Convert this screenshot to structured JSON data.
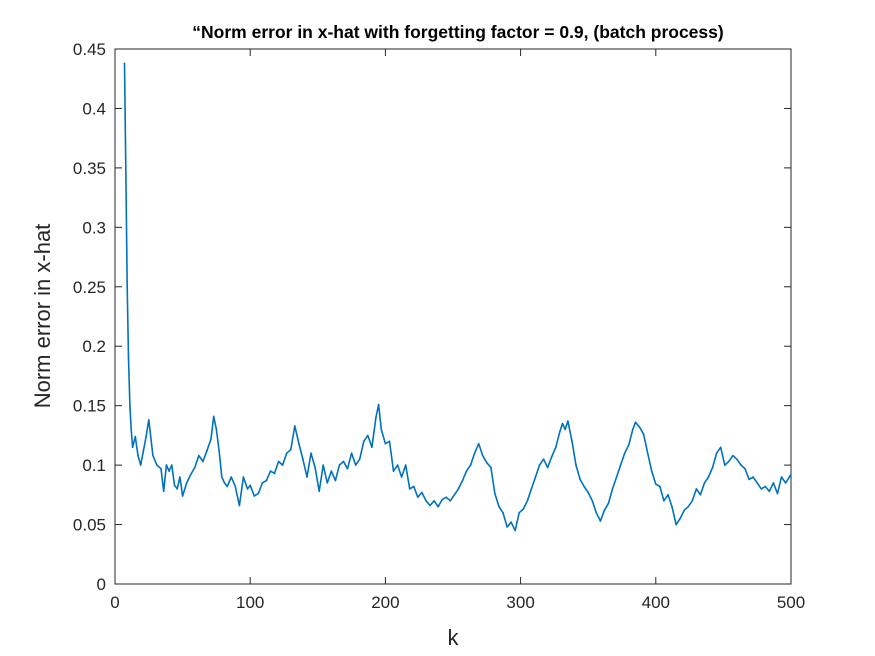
{
  "chart_data": {
    "type": "line",
    "title": "“Norm error in x-hat with forgetting factor = 0.9, (batch process)",
    "xlabel": "k",
    "ylabel": "Norm error in x-hat",
    "xlim": [
      0,
      500
    ],
    "ylim": [
      0,
      0.45
    ],
    "xticks": [
      0,
      100,
      200,
      300,
      400,
      500
    ],
    "xtick_labels": [
      "0",
      "100",
      "200",
      "300",
      "400",
      "500"
    ],
    "yticks": [
      0,
      0.05,
      0.1,
      0.15,
      0.2,
      0.25,
      0.3,
      0.35,
      0.4,
      0.45
    ],
    "ytick_labels": [
      "0",
      "0.05",
      "0.1",
      "0.15",
      "0.2",
      "0.25",
      "0.3",
      "0.35",
      "0.4",
      "0.45"
    ],
    "grid": false,
    "box": true,
    "series": [
      {
        "color": "#0072BD",
        "x": [
          7,
          8,
          9,
          10,
          11,
          12,
          13,
          15,
          17,
          19,
          21,
          23,
          25,
          28,
          31,
          34,
          36,
          38,
          40,
          42,
          44,
          46,
          48,
          50,
          53,
          56,
          59,
          62,
          65,
          68,
          71,
          73,
          75,
          77,
          79,
          81,
          83,
          86,
          89,
          92,
          95,
          98,
          100,
          103,
          106,
          109,
          112,
          115,
          118,
          121,
          124,
          127,
          130,
          133,
          136,
          139,
          142,
          145,
          148,
          151,
          154,
          157,
          160,
          163,
          166,
          169,
          172,
          175,
          178,
          181,
          184,
          187,
          190,
          193,
          195,
          197,
          200,
          203,
          206,
          209,
          212,
          215,
          218,
          221,
          224,
          227,
          230,
          233,
          236,
          239,
          242,
          245,
          248,
          251,
          254,
          257,
          260,
          263,
          266,
          269,
          272,
          275,
          278,
          281,
          284,
          287,
          290,
          293,
          296,
          299,
          302,
          305,
          308,
          311,
          314,
          317,
          320,
          323,
          326,
          329,
          331,
          333,
          335,
          338,
          341,
          344,
          347,
          350,
          353,
          356,
          359,
          362,
          365,
          368,
          371,
          374,
          377,
          380,
          383,
          385,
          388,
          391,
          394,
          397,
          400,
          403,
          406,
          409,
          412,
          415,
          418,
          421,
          424,
          427,
          430,
          433,
          436,
          439,
          442,
          445,
          448,
          451,
          454,
          457,
          460,
          463,
          466,
          469,
          472,
          475,
          478,
          481,
          484,
          487,
          490,
          493,
          496,
          500
        ],
        "y": [
          0.438,
          0.35,
          0.25,
          0.19,
          0.15,
          0.13,
          0.115,
          0.124,
          0.108,
          0.1,
          0.112,
          0.124,
          0.138,
          0.108,
          0.1,
          0.097,
          0.078,
          0.1,
          0.095,
          0.1,
          0.083,
          0.08,
          0.09,
          0.074,
          0.085,
          0.092,
          0.098,
          0.108,
          0.103,
          0.112,
          0.122,
          0.141,
          0.13,
          0.112,
          0.09,
          0.085,
          0.082,
          0.09,
          0.082,
          0.066,
          0.09,
          0.08,
          0.083,
          0.074,
          0.076,
          0.085,
          0.087,
          0.095,
          0.093,
          0.103,
          0.1,
          0.11,
          0.113,
          0.133,
          0.118,
          0.105,
          0.09,
          0.11,
          0.098,
          0.078,
          0.1,
          0.085,
          0.095,
          0.087,
          0.1,
          0.103,
          0.097,
          0.11,
          0.1,
          0.105,
          0.12,
          0.125,
          0.115,
          0.14,
          0.151,
          0.13,
          0.118,
          0.12,
          0.095,
          0.1,
          0.09,
          0.1,
          0.08,
          0.082,
          0.073,
          0.077,
          0.07,
          0.066,
          0.07,
          0.065,
          0.071,
          0.073,
          0.07,
          0.075,
          0.08,
          0.087,
          0.095,
          0.1,
          0.11,
          0.118,
          0.108,
          0.102,
          0.098,
          0.076,
          0.065,
          0.06,
          0.048,
          0.052,
          0.045,
          0.06,
          0.063,
          0.07,
          0.08,
          0.09,
          0.1,
          0.105,
          0.098,
          0.107,
          0.115,
          0.128,
          0.135,
          0.13,
          0.137,
          0.12,
          0.1,
          0.088,
          0.082,
          0.077,
          0.07,
          0.06,
          0.053,
          0.062,
          0.068,
          0.08,
          0.09,
          0.1,
          0.11,
          0.117,
          0.13,
          0.136,
          0.132,
          0.126,
          0.11,
          0.095,
          0.084,
          0.082,
          0.07,
          0.075,
          0.065,
          0.05,
          0.055,
          0.062,
          0.065,
          0.07,
          0.08,
          0.075,
          0.085,
          0.09,
          0.098,
          0.11,
          0.115,
          0.1,
          0.103,
          0.108,
          0.105,
          0.1,
          0.097,
          0.088,
          0.09,
          0.085,
          0.08,
          0.082,
          0.078,
          0.085,
          0.076,
          0.09,
          0.085,
          0.092
        ]
      }
    ]
  }
}
